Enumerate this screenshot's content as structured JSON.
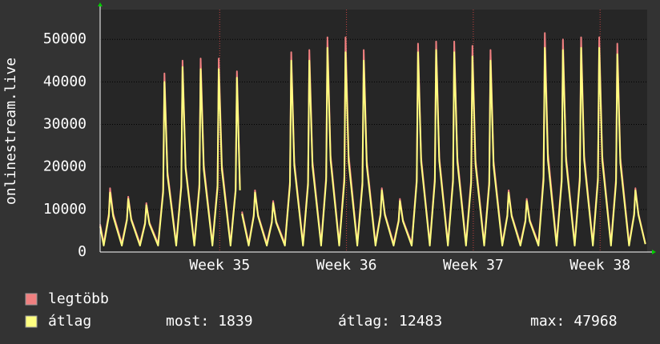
{
  "chart_data": {
    "type": "line",
    "y_label": "onlinestream.live",
    "xlim": [
      0,
      30.2
    ],
    "xticks": [
      {
        "value": 6.6,
        "label": "Week 35"
      },
      {
        "value": 13.6,
        "label": "Week 36"
      },
      {
        "value": 20.6,
        "label": "Week 37"
      },
      {
        "value": 27.6,
        "label": "Week 38"
      }
    ],
    "ylim": [
      0,
      57000
    ],
    "yticks": [
      0,
      10000,
      20000,
      30000,
      40000,
      50000
    ],
    "grid": true,
    "x": [
      0,
      0.2,
      0.48,
      0.55,
      0.72,
      1.2,
      1.48,
      1.55,
      1.72,
      2.2,
      2.48,
      2.55,
      2.72,
      3.2,
      3.48,
      3.55,
      3.72,
      4.2,
      4.48,
      4.55,
      4.72,
      5.2,
      5.48,
      5.55,
      5.72,
      6.2,
      6.48,
      6.55,
      6.72,
      7.2,
      7.48,
      7.55,
      7.72,
      7.78,
      7.83,
      8.2,
      8.48,
      8.55,
      8.72,
      9.2,
      9.48,
      9.55,
      9.72,
      10.2,
      10.48,
      10.55,
      10.72,
      11.2,
      11.48,
      11.55,
      11.72,
      12.2,
      12.48,
      12.55,
      12.72,
      13.2,
      13.48,
      13.55,
      13.72,
      14.2,
      14.48,
      14.55,
      14.72,
      15.2,
      15.48,
      15.55,
      15.72,
      16.2,
      16.48,
      16.55,
      16.72,
      17.2,
      17.48,
      17.55,
      17.72,
      18.2,
      18.48,
      18.55,
      18.72,
      19.2,
      19.48,
      19.55,
      19.72,
      20.2,
      20.48,
      20.55,
      20.72,
      21.2,
      21.48,
      21.55,
      21.72,
      22.2,
      22.48,
      22.55,
      22.72,
      23.2,
      23.48,
      23.55,
      23.72,
      24.2,
      24.48,
      24.55,
      24.72,
      25.2,
      25.48,
      25.55,
      25.72,
      26.2,
      26.48,
      26.55,
      26.72,
      27.2,
      27.48,
      27.55,
      27.72,
      28.2,
      28.48,
      28.55,
      28.72,
      29.2,
      29.48,
      29.55,
      29.72,
      30.1
    ],
    "series": [
      {
        "name": "legtöbb",
        "color": "#f08080",
        "values": [
          6500,
          2000,
          9000,
          15000,
          9000,
          2000,
          7800,
          13000,
          7800,
          2000,
          6900,
          11500,
          6900,
          2000,
          14700,
          42000,
          18900,
          2000,
          15800,
          45000,
          20300,
          2000,
          15900,
          45500,
          20500,
          2000,
          15900,
          45500,
          20500,
          2000,
          14900,
          42500,
          15000,
          null,
          9500,
          2000,
          8700,
          14500,
          8700,
          2000,
          7200,
          12000,
          7200,
          2000,
          16500,
          47000,
          21200,
          2000,
          16600,
          47500,
          21400,
          2000,
          17700,
          50500,
          22700,
          2000,
          17700,
          50500,
          22700,
          2000,
          16600,
          47500,
          21400,
          2000,
          9000,
          15000,
          9000,
          2000,
          7500,
          12500,
          7500,
          2000,
          17200,
          49000,
          22100,
          2000,
          17300,
          49500,
          22300,
          2000,
          17300,
          49500,
          22300,
          2000,
          17000,
          48500,
          21800,
          2000,
          16600,
          47500,
          21400,
          2000,
          8700,
          14500,
          8700,
          2000,
          7500,
          12500,
          7500,
          2000,
          18000,
          51500,
          23200,
          2000,
          17500,
          50000,
          22500,
          2000,
          17700,
          50500,
          22700,
          2000,
          17700,
          50500,
          22700,
          2000,
          17200,
          49000,
          22100,
          2000,
          9000,
          15000,
          9000,
          2000
        ]
      },
      {
        "name": "átlag",
        "color": "#ffff80",
        "values": [
          6000,
          1500,
          8400,
          14000,
          8400,
          1500,
          7500,
          12500,
          7500,
          1500,
          6600,
          11000,
          6600,
          1500,
          14000,
          40000,
          18000,
          1500,
          15200,
          43500,
          19600,
          1500,
          15100,
          43000,
          19400,
          1500,
          15100,
          43000,
          19400,
          1500,
          14400,
          41000,
          14500,
          null,
          9000,
          1500,
          8400,
          14000,
          8400,
          1500,
          6900,
          11500,
          6900,
          1500,
          15800,
          45000,
          20300,
          1500,
          15800,
          45000,
          20300,
          1500,
          16800,
          48000,
          21600,
          1500,
          16500,
          47000,
          21200,
          1500,
          15800,
          45000,
          20300,
          1500,
          8700,
          14500,
          8700,
          1500,
          7200,
          12000,
          7200,
          1500,
          16500,
          47000,
          21200,
          1500,
          16600,
          47500,
          21400,
          1500,
          16500,
          47000,
          21200,
          1500,
          16100,
          46000,
          20700,
          1500,
          15800,
          45000,
          20300,
          1500,
          8400,
          14000,
          8400,
          1500,
          7200,
          12000,
          7200,
          1500,
          16800,
          48000,
          21600,
          1500,
          16600,
          47500,
          21400,
          1500,
          16800,
          48000,
          21600,
          1500,
          16800,
          48000,
          21600,
          1500,
          16300,
          46500,
          20900,
          1500,
          8700,
          14500,
          8700,
          1839
        ]
      }
    ],
    "stats": [
      {
        "label": "most:",
        "value": 1839
      },
      {
        "label": "átlag:",
        "value": 12483
      },
      {
        "label": "max:",
        "value": 47968
      }
    ]
  }
}
